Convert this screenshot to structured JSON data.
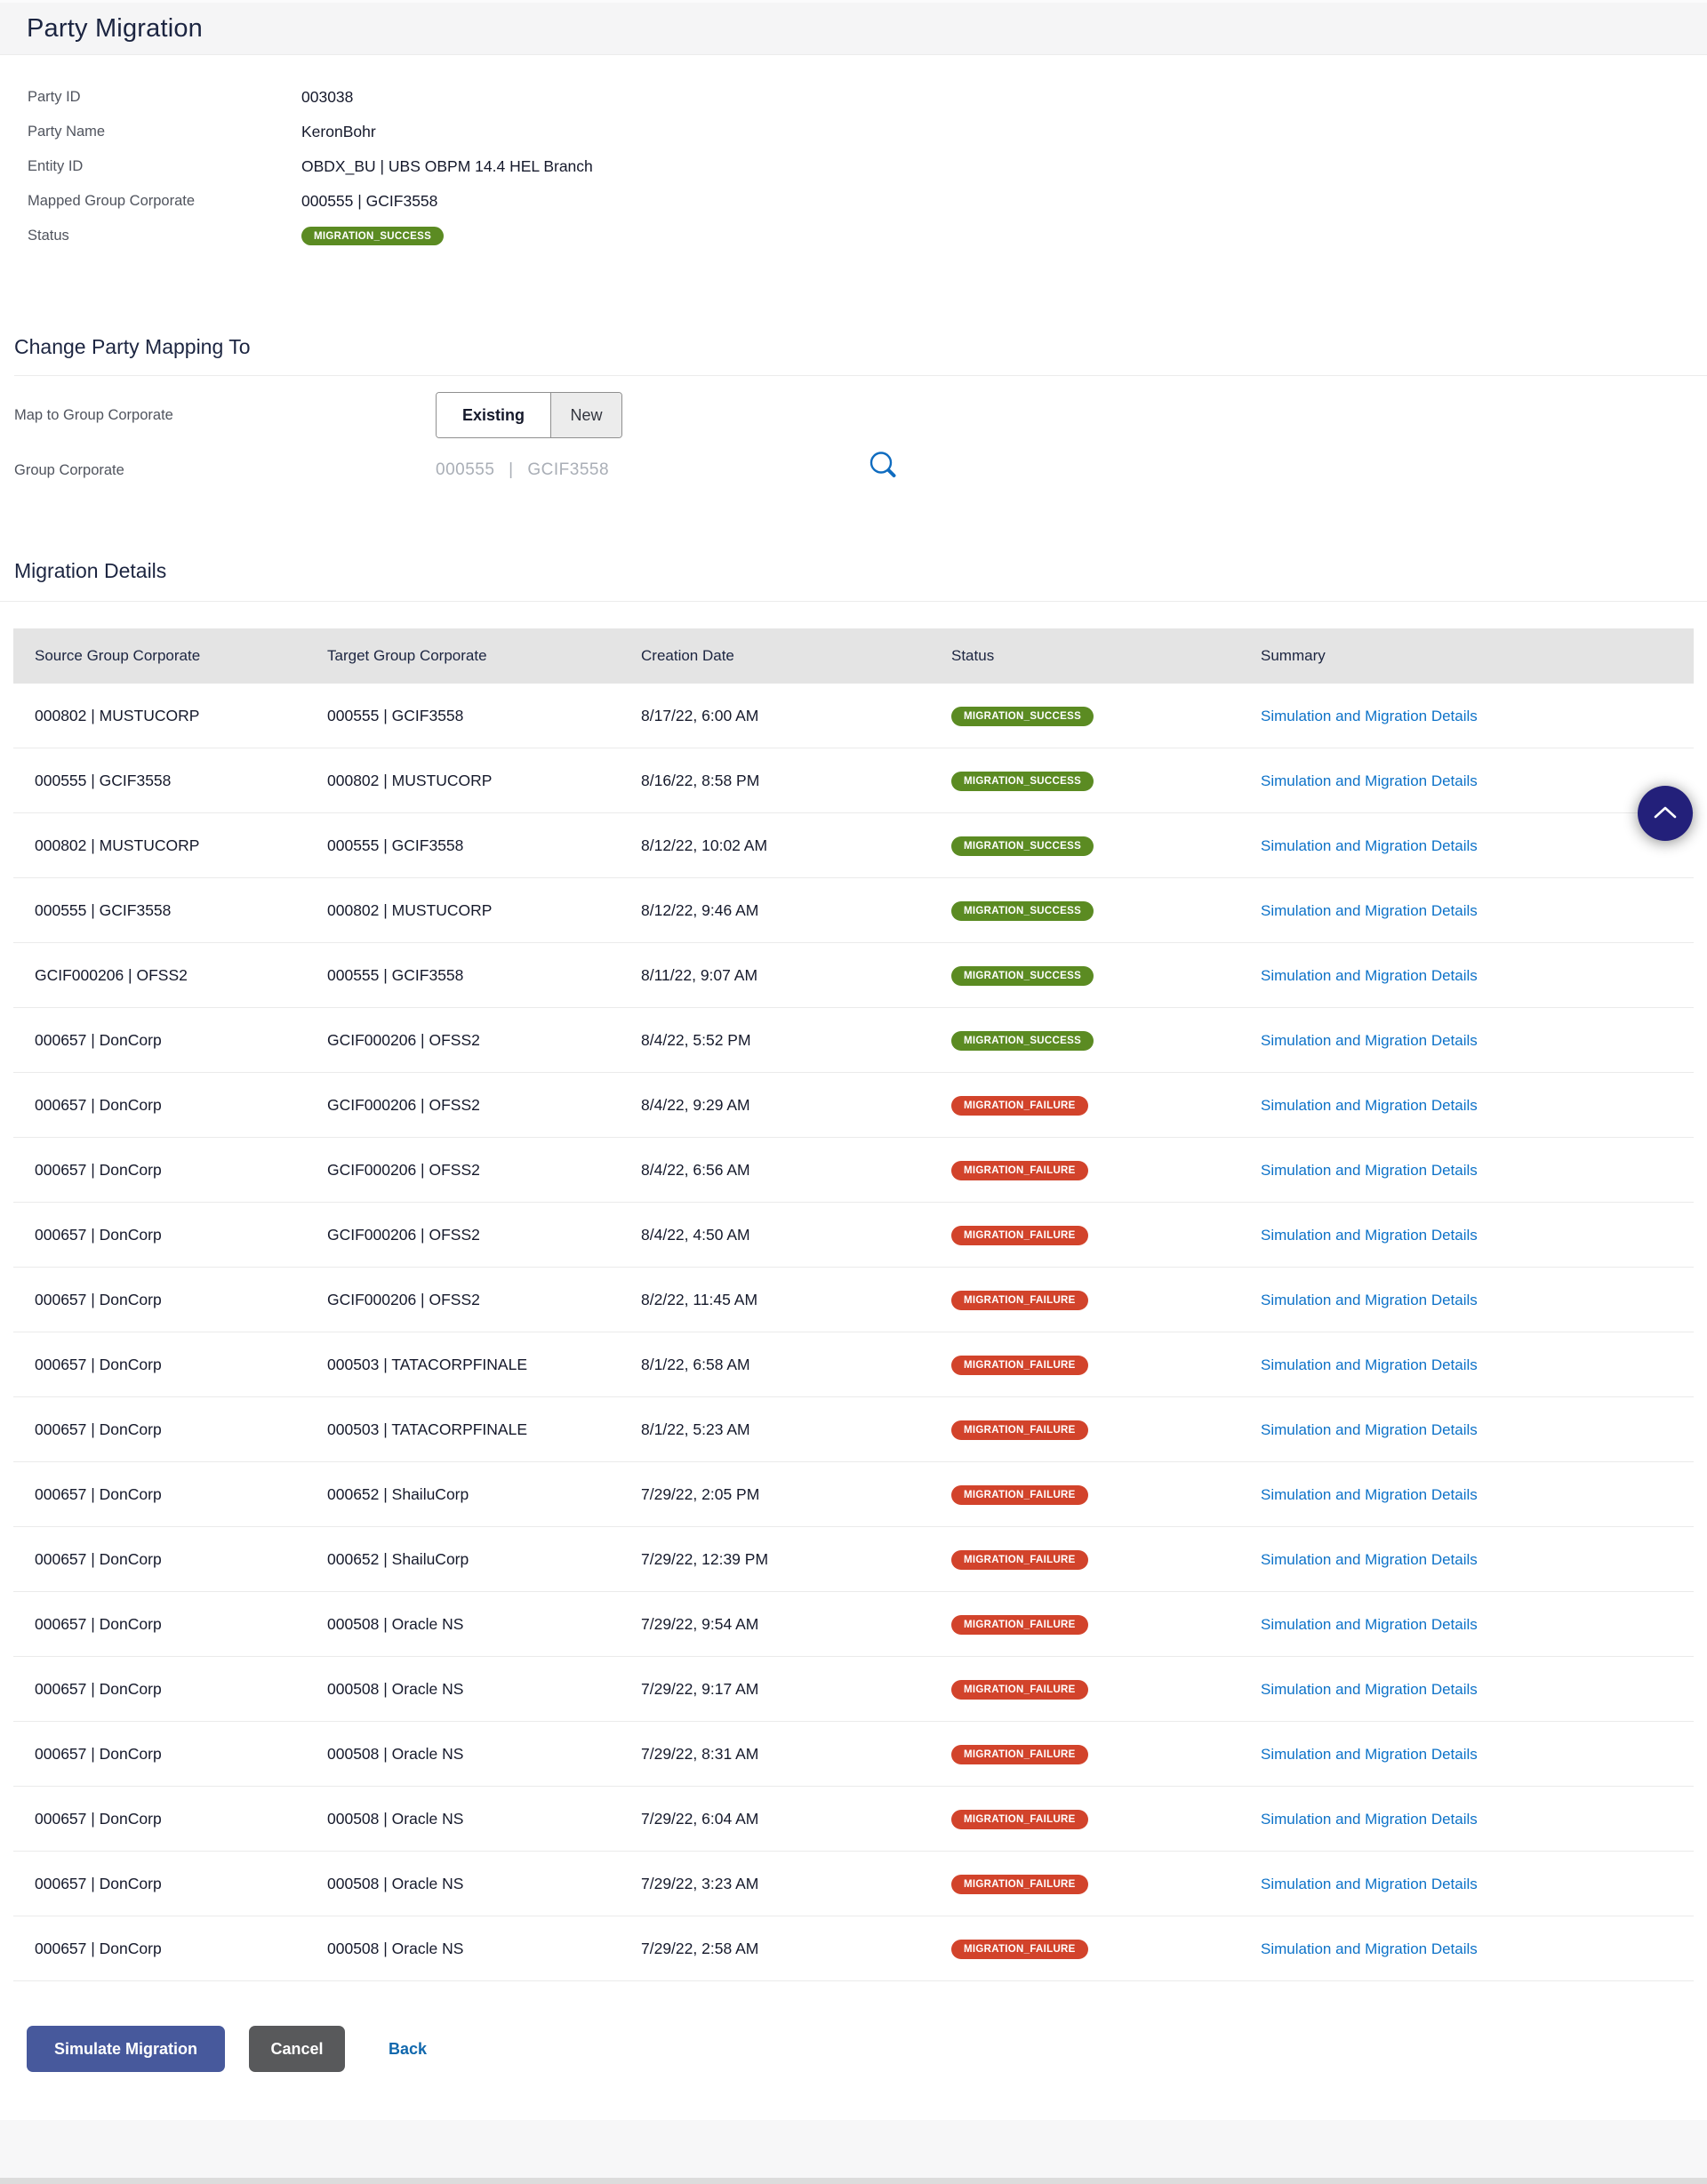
{
  "page": {
    "title": "Party Migration"
  },
  "party_details": {
    "fields": [
      {
        "label": "Party ID",
        "value": "003038"
      },
      {
        "label": "Party Name",
        "value": "KeronBohr"
      },
      {
        "label": "Entity ID",
        "value": "OBDX_BU | UBS OBPM 14.4 HEL Branch"
      },
      {
        "label": "Mapped Group Corporate",
        "value": "000555 | GCIF3558"
      }
    ],
    "status_label": "Status",
    "status_value": "MIGRATION_SUCCESS"
  },
  "mapping": {
    "heading": "Change Party Mapping To",
    "map_label": "Map to Group Corporate",
    "toggle": {
      "existing": "Existing",
      "new": "New",
      "selected": "Existing"
    },
    "group_corporate_label": "Group Corporate",
    "group_corporate_value": "000555 | GCIF3558",
    "search_icon": "magnifier"
  },
  "table": {
    "heading": "Migration Details",
    "columns": [
      "Source Group Corporate",
      "Target Group Corporate",
      "Creation Date",
      "Status",
      "Summary"
    ],
    "summary_link_label": "Simulation and Migration Details",
    "rows": [
      {
        "source": "000802 | MUSTUCORP",
        "target": "000555 | GCIF3558",
        "date": "8/17/22, 6:00 AM",
        "status": "MIGRATION_SUCCESS"
      },
      {
        "source": "000555 | GCIF3558",
        "target": "000802 | MUSTUCORP",
        "date": "8/16/22, 8:58 PM",
        "status": "MIGRATION_SUCCESS"
      },
      {
        "source": "000802 | MUSTUCORP",
        "target": "000555 | GCIF3558",
        "date": "8/12/22, 10:02 AM",
        "status": "MIGRATION_SUCCESS"
      },
      {
        "source": "000555 | GCIF3558",
        "target": "000802 | MUSTUCORP",
        "date": "8/12/22, 9:46 AM",
        "status": "MIGRATION_SUCCESS"
      },
      {
        "source": "GCIF000206 | OFSS2",
        "target": "000555 | GCIF3558",
        "date": "8/11/22, 9:07 AM",
        "status": "MIGRATION_SUCCESS"
      },
      {
        "source": "000657 | DonCorp",
        "target": "GCIF000206 | OFSS2",
        "date": "8/4/22, 5:52 PM",
        "status": "MIGRATION_SUCCESS"
      },
      {
        "source": "000657 | DonCorp",
        "target": "GCIF000206 | OFSS2",
        "date": "8/4/22, 9:29 AM",
        "status": "MIGRATION_FAILURE"
      },
      {
        "source": "000657 | DonCorp",
        "target": "GCIF000206 | OFSS2",
        "date": "8/4/22, 6:56 AM",
        "status": "MIGRATION_FAILURE"
      },
      {
        "source": "000657 | DonCorp",
        "target": "GCIF000206 | OFSS2",
        "date": "8/4/22, 4:50 AM",
        "status": "MIGRATION_FAILURE"
      },
      {
        "source": "000657 | DonCorp",
        "target": "GCIF000206 | OFSS2",
        "date": "8/2/22, 11:45 AM",
        "status": "MIGRATION_FAILURE"
      },
      {
        "source": "000657 | DonCorp",
        "target": "000503 | TATACORPFINALE",
        "date": "8/1/22, 6:58 AM",
        "status": "MIGRATION_FAILURE"
      },
      {
        "source": "000657 | DonCorp",
        "target": "000503 | TATACORPFINALE",
        "date": "8/1/22, 5:23 AM",
        "status": "MIGRATION_FAILURE"
      },
      {
        "source": "000657 | DonCorp",
        "target": "000652 | ShailuCorp",
        "date": "7/29/22, 2:05 PM",
        "status": "MIGRATION_FAILURE"
      },
      {
        "source": "000657 | DonCorp",
        "target": "000652 | ShailuCorp",
        "date": "7/29/22, 12:39 PM",
        "status": "MIGRATION_FAILURE"
      },
      {
        "source": "000657 | DonCorp",
        "target": "000508 | Oracle NS",
        "date": "7/29/22, 9:54 AM",
        "status": "MIGRATION_FAILURE"
      },
      {
        "source": "000657 | DonCorp",
        "target": "000508 | Oracle NS",
        "date": "7/29/22, 9:17 AM",
        "status": "MIGRATION_FAILURE"
      },
      {
        "source": "000657 | DonCorp",
        "target": "000508 | Oracle NS",
        "date": "7/29/22, 8:31 AM",
        "status": "MIGRATION_FAILURE"
      },
      {
        "source": "000657 | DonCorp",
        "target": "000508 | Oracle NS",
        "date": "7/29/22, 6:04 AM",
        "status": "MIGRATION_FAILURE"
      },
      {
        "source": "000657 | DonCorp",
        "target": "000508 | Oracle NS",
        "date": "7/29/22, 3:23 AM",
        "status": "MIGRATION_FAILURE"
      },
      {
        "source": "000657 | DonCorp",
        "target": "000508 | Oracle NS",
        "date": "7/29/22, 2:58 AM",
        "status": "MIGRATION_FAILURE"
      }
    ]
  },
  "actions": {
    "simulate": "Simulate Migration",
    "cancel": "Cancel",
    "back": "Back"
  },
  "scroll_top_icon": "chevron-up",
  "colors": {
    "success": "#5b8b22",
    "failure": "#d2432b",
    "link": "#0d72c8",
    "primary_button": "#47599c",
    "cancel_button": "#58595b",
    "fab": "#23207a"
  }
}
